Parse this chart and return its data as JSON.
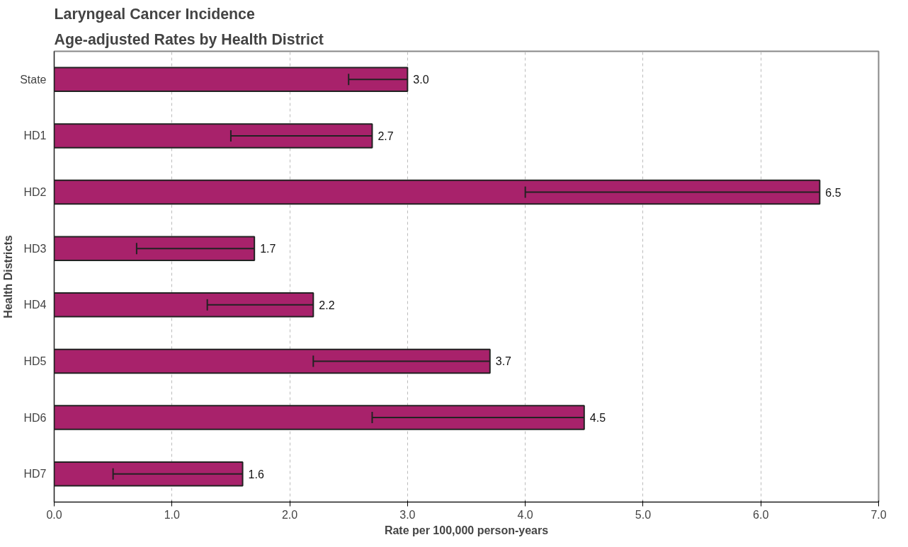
{
  "chart_data": {
    "type": "bar",
    "orientation": "horizontal",
    "title": "Laryngeal Cancer Incidence",
    "subtitle": "Age-adjusted Rates by Health District",
    "xlabel": "Rate per 100,000 person-years",
    "ylabel": "Health Districts",
    "categories": [
      "State",
      "HD1",
      "HD2",
      "HD3",
      "HD4",
      "HD5",
      "HD6",
      "HD7"
    ],
    "values": [
      3.0,
      2.7,
      6.5,
      1.7,
      2.2,
      3.7,
      4.5,
      1.6
    ],
    "errors": [
      [
        2.5,
        3.0
      ],
      [
        1.5,
        2.7
      ],
      [
        4.0,
        6.5
      ],
      [
        0.7,
        1.7
      ],
      [
        1.3,
        2.2
      ],
      [
        2.2,
        3.7
      ],
      [
        2.7,
        4.5
      ],
      [
        0.5,
        1.6
      ]
    ],
    "color": "#a8226b",
    "value_labels": [
      "3.0",
      "2.7",
      "6.5",
      "1.7",
      "2.2",
      "3.7",
      "4.5",
      "1.6"
    ],
    "xlim": [
      0,
      7
    ],
    "xticks": [
      {
        "value": 0,
        "label": "0.0"
      },
      {
        "value": 1,
        "label": "1.0"
      },
      {
        "value": 2,
        "label": "2.0"
      },
      {
        "value": 3,
        "label": "3.0"
      },
      {
        "value": 4,
        "label": "4.0"
      },
      {
        "value": 5,
        "label": "5.0"
      },
      {
        "value": 6,
        "label": "6.0"
      },
      {
        "value": 7,
        "label": "7.0"
      }
    ],
    "grid": "x"
  }
}
